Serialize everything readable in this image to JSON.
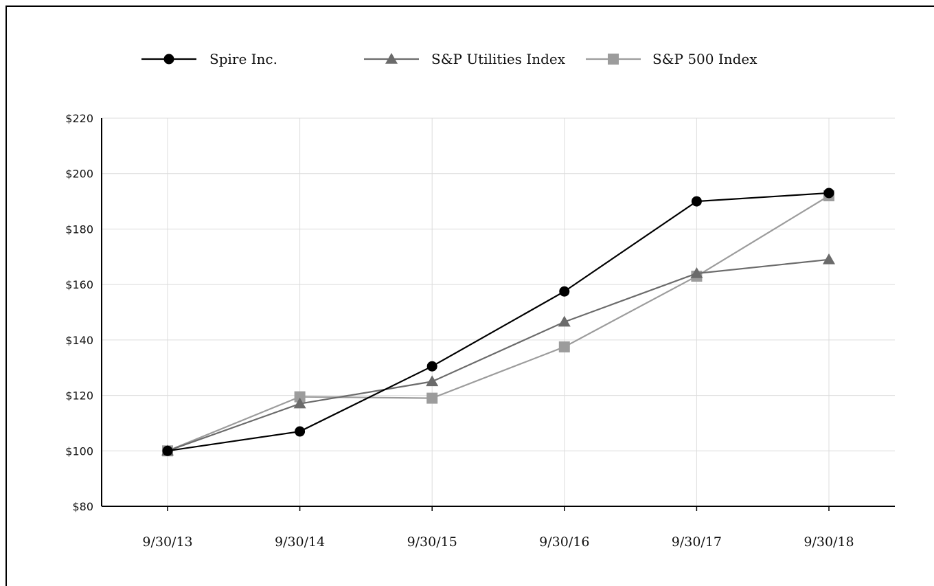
{
  "chart_data": {
    "type": "line",
    "title": "",
    "xlabel": "",
    "ylabel": "",
    "categories": [
      "9/30/13",
      "9/30/14",
      "9/30/15",
      "9/30/16",
      "9/30/17",
      "9/30/18"
    ],
    "y_ticks": [
      "$80",
      "$100",
      "$120",
      "$140",
      "$160",
      "$180",
      "$200",
      "$220"
    ],
    "ylim": [
      80,
      220
    ],
    "grid": true,
    "legend_position": "top",
    "series": [
      {
        "name": "Spire Inc.",
        "values": [
          100,
          107,
          130.5,
          157.5,
          190,
          193
        ],
        "color": "#000000",
        "marker": "circle"
      },
      {
        "name": "S&P Utilities Index",
        "values": [
          100,
          117,
          125,
          146.5,
          164,
          169
        ],
        "color": "#6b6b6b",
        "marker": "triangle"
      },
      {
        "name": "S&P 500 Index",
        "values": [
          100,
          119.5,
          119,
          137.5,
          163,
          192
        ],
        "color": "#9c9c9c",
        "marker": "square"
      }
    ]
  }
}
